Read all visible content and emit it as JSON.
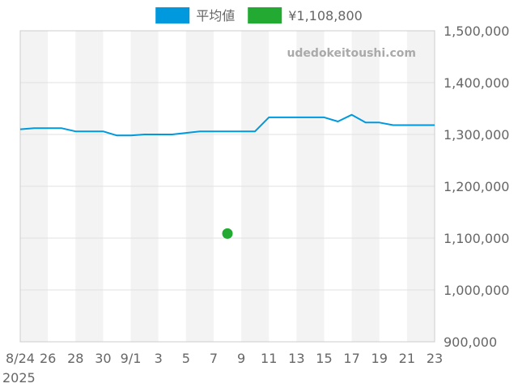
{
  "watermark": "udedokeitoushi.com",
  "colors": {
    "line": "#0099dd",
    "point": "#22aa33",
    "band": "#f3f3f3",
    "grid": "#e2e2e2",
    "frame": "#cccccc",
    "text": "#666666"
  },
  "chart_data": {
    "type": "line",
    "legend_placement": "top-center",
    "x_axis": {
      "range": [
        "2025-08-24",
        "2025-09-23"
      ],
      "year_label": "2025",
      "ticks": [
        {
          "date": "2025-08-24",
          "label": "8/24"
        },
        {
          "date": "2025-08-26",
          "label": "26"
        },
        {
          "date": "2025-08-28",
          "label": "28"
        },
        {
          "date": "2025-08-30",
          "label": "30"
        },
        {
          "date": "2025-09-01",
          "label": "9/1"
        },
        {
          "date": "2025-09-03",
          "label": "3"
        },
        {
          "date": "2025-09-05",
          "label": "5"
        },
        {
          "date": "2025-09-07",
          "label": "7"
        },
        {
          "date": "2025-09-09",
          "label": "9"
        },
        {
          "date": "2025-09-11",
          "label": "11"
        },
        {
          "date": "2025-09-13",
          "label": "13"
        },
        {
          "date": "2025-09-15",
          "label": "15"
        },
        {
          "date": "2025-09-17",
          "label": "17"
        },
        {
          "date": "2025-09-19",
          "label": "19"
        },
        {
          "date": "2025-09-21",
          "label": "21"
        },
        {
          "date": "2025-09-23",
          "label": "23"
        }
      ]
    },
    "y_axis": {
      "position": "right",
      "ylim": [
        900000,
        1500000
      ],
      "ticks": [
        {
          "value": 1500000,
          "label": "1,500,000"
        },
        {
          "value": 1400000,
          "label": "1,400,000"
        },
        {
          "value": 1300000,
          "label": "1,300,000"
        },
        {
          "value": 1200000,
          "label": "1,200,000"
        },
        {
          "value": 1100000,
          "label": "1,100,000"
        },
        {
          "value": 1000000,
          "label": "1,000,000"
        },
        {
          "value": 900000,
          "label": "900,000"
        }
      ]
    },
    "series": [
      {
        "name": "平均値",
        "kind": "line",
        "color": "#0099dd",
        "points": [
          {
            "x": "2025-08-24",
            "y": 1310000
          },
          {
            "x": "2025-08-25",
            "y": 1312000
          },
          {
            "x": "2025-08-26",
            "y": 1312000
          },
          {
            "x": "2025-08-27",
            "y": 1312000
          },
          {
            "x": "2025-08-28",
            "y": 1306000
          },
          {
            "x": "2025-08-29",
            "y": 1306000
          },
          {
            "x": "2025-08-30",
            "y": 1306000
          },
          {
            "x": "2025-08-31",
            "y": 1298000
          },
          {
            "x": "2025-09-01",
            "y": 1298000
          },
          {
            "x": "2025-09-02",
            "y": 1300000
          },
          {
            "x": "2025-09-03",
            "y": 1300000
          },
          {
            "x": "2025-09-04",
            "y": 1300000
          },
          {
            "x": "2025-09-05",
            "y": 1303000
          },
          {
            "x": "2025-09-06",
            "y": 1306000
          },
          {
            "x": "2025-09-07",
            "y": 1306000
          },
          {
            "x": "2025-09-08",
            "y": 1306000
          },
          {
            "x": "2025-09-09",
            "y": 1306000
          },
          {
            "x": "2025-09-10",
            "y": 1306000
          },
          {
            "x": "2025-09-11",
            "y": 1333000
          },
          {
            "x": "2025-09-12",
            "y": 1333000
          },
          {
            "x": "2025-09-13",
            "y": 1333000
          },
          {
            "x": "2025-09-14",
            "y": 1333000
          },
          {
            "x": "2025-09-15",
            "y": 1333000
          },
          {
            "x": "2025-09-16",
            "y": 1325000
          },
          {
            "x": "2025-09-17",
            "y": 1338000
          },
          {
            "x": "2025-09-18",
            "y": 1323000
          },
          {
            "x": "2025-09-19",
            "y": 1323000
          },
          {
            "x": "2025-09-20",
            "y": 1318000
          },
          {
            "x": "2025-09-21",
            "y": 1318000
          },
          {
            "x": "2025-09-22",
            "y": 1318000
          },
          {
            "x": "2025-09-23",
            "y": 1318000
          }
        ]
      },
      {
        "name": "¥1,108,800",
        "kind": "point",
        "color": "#22aa33",
        "points": [
          {
            "x": "2025-09-08",
            "y": 1108800
          }
        ]
      }
    ]
  }
}
